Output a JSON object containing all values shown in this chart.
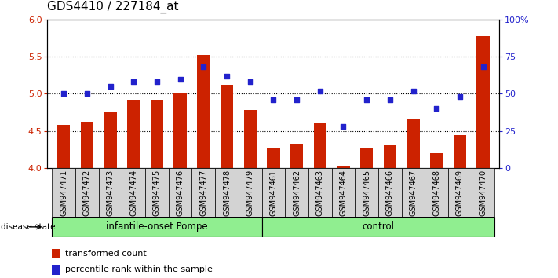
{
  "title": "GDS4410 / 227184_at",
  "samples": [
    "GSM947471",
    "GSM947472",
    "GSM947473",
    "GSM947474",
    "GSM947475",
    "GSM947476",
    "GSM947477",
    "GSM947478",
    "GSM947479",
    "GSM947461",
    "GSM947462",
    "GSM947463",
    "GSM947464",
    "GSM947465",
    "GSM947466",
    "GSM947467",
    "GSM947468",
    "GSM947469",
    "GSM947470"
  ],
  "transformed_count": [
    4.58,
    4.62,
    4.75,
    4.92,
    4.92,
    5.0,
    5.52,
    5.12,
    4.78,
    4.27,
    4.33,
    4.61,
    4.02,
    4.28,
    4.31,
    4.66,
    4.2,
    4.45,
    5.78
  ],
  "percentile": [
    50,
    50,
    55,
    58,
    58,
    60,
    68,
    62,
    58,
    46,
    46,
    52,
    28,
    46,
    46,
    52,
    40,
    48,
    68
  ],
  "group1_label": "infantile-onset Pompe",
  "group2_label": "control",
  "group1_count": 9,
  "group2_count": 10,
  "ylim_left": [
    4.0,
    6.0
  ],
  "ylim_right": [
    0,
    100
  ],
  "yticks_left": [
    4.0,
    4.5,
    5.0,
    5.5,
    6.0
  ],
  "yticks_right": [
    0,
    25,
    50,
    75,
    100
  ],
  "ytick_right_labels": [
    "0",
    "25",
    "50",
    "75",
    "100%"
  ],
  "bar_color": "#cc2200",
  "dot_color": "#2222cc",
  "title_fontsize": 11,
  "tick_label_fontsize": 7,
  "axis_tick_fontsize": 8,
  "legend_label_bar": "transformed count",
  "legend_label_dot": "percentile rank within the sample",
  "disease_state_label": "disease state",
  "group_bg_color": "#90ee90",
  "sample_bg_color": "#d3d3d3",
  "grid_dotted_at": [
    4.5,
    5.0,
    5.5
  ]
}
